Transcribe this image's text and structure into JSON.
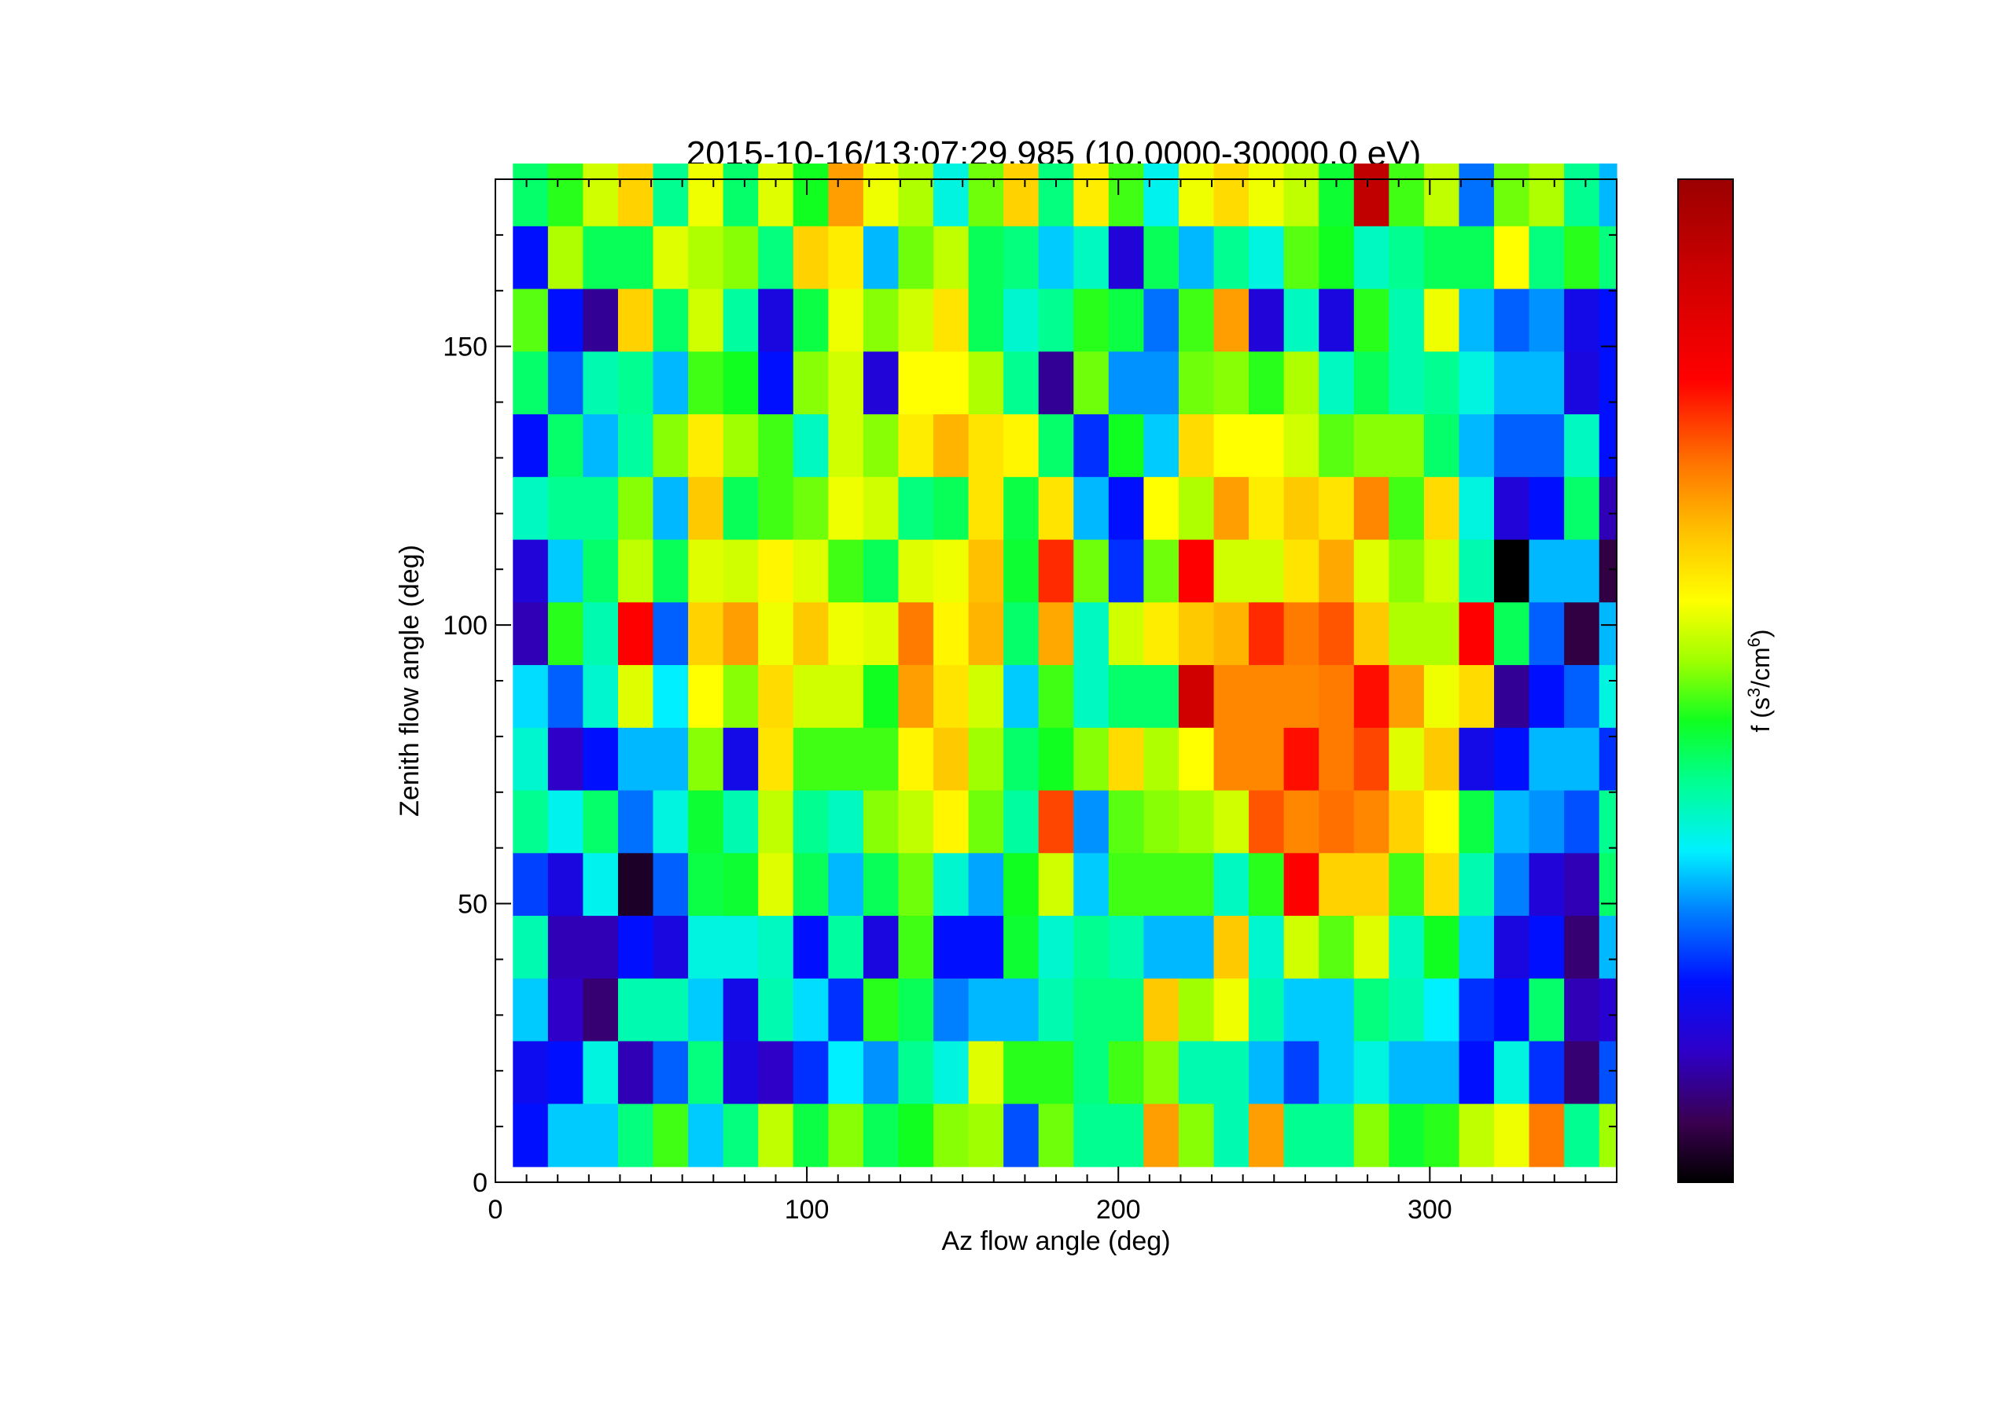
{
  "chart_data": {
    "type": "heatmap",
    "title": "2015-10-16/13:07:29.985 (10.0000-30000.0 eV)",
    "xlabel": "Az flow angle (deg)",
    "ylabel": "Zenith flow angle (deg)",
    "colorbar_label_base": "f (s",
    "colorbar_label_exp1": "3",
    "colorbar_label_mid": "/cm",
    "colorbar_label_exp2": "6",
    "colorbar_label_end": ")",
    "xlim": [
      0,
      360
    ],
    "ylim": [
      0,
      180
    ],
    "xticks": [
      0,
      100,
      200,
      300
    ],
    "yticks": [
      0,
      50,
      100,
      150
    ],
    "x_bin_start": 5.625,
    "x_bin_width": 11.25,
    "y_bin_start": 2.8125,
    "y_bin_width": 11.25,
    "colormap": "rainbow (black-purple-blue-cyan-green-yellow-orange-red-darkred)",
    "value_scale": "normalized 0-1",
    "rows_top_to_bottom": [
      [
        0.42,
        0.47,
        0.55,
        0.63,
        0.4,
        0.57,
        0.42,
        0.56,
        0.46,
        0.68,
        0.57,
        0.53,
        0.35,
        0.5,
        0.63,
        0.41,
        0.6,
        0.48,
        0.34,
        0.57,
        0.62,
        0.57,
        0.54,
        0.45,
        0.93,
        0.48,
        0.54,
        0.26,
        0.5,
        0.53,
        0.4,
        0.3
      ],
      [
        0.2,
        0.53,
        0.43,
        0.43,
        0.56,
        0.53,
        0.51,
        0.41,
        0.63,
        0.6,
        0.3,
        0.5,
        0.54,
        0.43,
        0.41,
        0.31,
        0.37,
        0.15,
        0.43,
        0.3,
        0.4,
        0.35,
        0.49,
        0.46,
        0.37,
        0.4,
        0.43,
        0.43,
        0.58,
        0.41,
        0.47,
        0.41
      ],
      [
        0.49,
        0.2,
        0.1,
        0.63,
        0.42,
        0.55,
        0.39,
        0.16,
        0.44,
        0.57,
        0.51,
        0.55,
        0.61,
        0.43,
        0.36,
        0.4,
        0.47,
        0.44,
        0.26,
        0.48,
        0.68,
        0.15,
        0.37,
        0.16,
        0.47,
        0.38,
        0.57,
        0.3,
        0.25,
        0.28,
        0.17,
        0.2
      ],
      [
        0.42,
        0.25,
        0.38,
        0.4,
        0.3,
        0.48,
        0.46,
        0.2,
        0.51,
        0.55,
        0.15,
        0.58,
        0.58,
        0.53,
        0.4,
        0.1,
        0.5,
        0.28,
        0.28,
        0.5,
        0.51,
        0.47,
        0.53,
        0.37,
        0.43,
        0.38,
        0.4,
        0.35,
        0.3,
        0.3,
        0.16,
        0.2
      ],
      [
        0.2,
        0.42,
        0.3,
        0.39,
        0.51,
        0.6,
        0.52,
        0.48,
        0.37,
        0.55,
        0.51,
        0.6,
        0.66,
        0.61,
        0.59,
        0.42,
        0.22,
        0.46,
        0.31,
        0.62,
        0.58,
        0.58,
        0.55,
        0.49,
        0.51,
        0.51,
        0.42,
        0.3,
        0.25,
        0.25,
        0.37,
        0.2
      ],
      [
        0.37,
        0.4,
        0.4,
        0.51,
        0.3,
        0.64,
        0.43,
        0.48,
        0.5,
        0.57,
        0.55,
        0.41,
        0.43,
        0.61,
        0.44,
        0.61,
        0.3,
        0.2,
        0.58,
        0.53,
        0.68,
        0.6,
        0.64,
        0.61,
        0.7,
        0.48,
        0.62,
        0.35,
        0.15,
        0.2,
        0.42,
        0.12
      ],
      [
        0.15,
        0.31,
        0.42,
        0.54,
        0.43,
        0.56,
        0.55,
        0.59,
        0.56,
        0.48,
        0.43,
        0.56,
        0.57,
        0.65,
        0.45,
        0.77,
        0.5,
        0.22,
        0.5,
        0.8,
        0.55,
        0.55,
        0.61,
        0.67,
        0.56,
        0.51,
        0.55,
        0.38,
        0.0,
        0.3,
        0.3,
        0.05
      ],
      [
        0.12,
        0.47,
        0.38,
        0.8,
        0.25,
        0.63,
        0.68,
        0.57,
        0.64,
        0.57,
        0.56,
        0.71,
        0.59,
        0.66,
        0.42,
        0.67,
        0.37,
        0.55,
        0.6,
        0.64,
        0.66,
        0.77,
        0.71,
        0.74,
        0.64,
        0.53,
        0.53,
        0.8,
        0.43,
        0.25,
        0.05,
        0.3
      ],
      [
        0.32,
        0.25,
        0.36,
        0.56,
        0.33,
        0.58,
        0.51,
        0.62,
        0.55,
        0.55,
        0.46,
        0.68,
        0.61,
        0.55,
        0.31,
        0.48,
        0.37,
        0.42,
        0.42,
        0.9,
        0.7,
        0.7,
        0.7,
        0.71,
        0.79,
        0.68,
        0.57,
        0.62,
        0.1,
        0.2,
        0.25,
        0.35
      ],
      [
        0.36,
        0.13,
        0.2,
        0.3,
        0.3,
        0.51,
        0.17,
        0.61,
        0.48,
        0.48,
        0.48,
        0.59,
        0.64,
        0.52,
        0.42,
        0.46,
        0.51,
        0.62,
        0.53,
        0.58,
        0.7,
        0.7,
        0.79,
        0.71,
        0.75,
        0.56,
        0.64,
        0.17,
        0.2,
        0.3,
        0.3,
        0.22
      ],
      [
        0.4,
        0.34,
        0.42,
        0.26,
        0.35,
        0.45,
        0.38,
        0.54,
        0.4,
        0.37,
        0.51,
        0.54,
        0.59,
        0.5,
        0.39,
        0.75,
        0.28,
        0.49,
        0.51,
        0.52,
        0.55,
        0.74,
        0.7,
        0.72,
        0.7,
        0.63,
        0.58,
        0.44,
        0.3,
        0.28,
        0.24,
        0.4
      ],
      [
        0.23,
        0.16,
        0.34,
        0.03,
        0.25,
        0.44,
        0.45,
        0.56,
        0.43,
        0.3,
        0.43,
        0.5,
        0.36,
        0.29,
        0.46,
        0.55,
        0.31,
        0.48,
        0.48,
        0.48,
        0.37,
        0.47,
        0.8,
        0.63,
        0.63,
        0.48,
        0.62,
        0.38,
        0.27,
        0.15,
        0.12,
        0.42
      ],
      [
        0.38,
        0.12,
        0.12,
        0.2,
        0.16,
        0.35,
        0.35,
        0.37,
        0.2,
        0.39,
        0.16,
        0.48,
        0.2,
        0.2,
        0.45,
        0.36,
        0.4,
        0.38,
        0.3,
        0.3,
        0.64,
        0.36,
        0.55,
        0.49,
        0.56,
        0.37,
        0.46,
        0.31,
        0.16,
        0.2,
        0.08,
        0.3
      ],
      [
        0.31,
        0.13,
        0.08,
        0.38,
        0.38,
        0.31,
        0.17,
        0.38,
        0.32,
        0.22,
        0.47,
        0.43,
        0.27,
        0.3,
        0.3,
        0.38,
        0.41,
        0.41,
        0.64,
        0.52,
        0.57,
        0.38,
        0.31,
        0.31,
        0.41,
        0.38,
        0.33,
        0.22,
        0.2,
        0.42,
        0.12,
        0.14
      ],
      [
        0.18,
        0.2,
        0.35,
        0.12,
        0.25,
        0.41,
        0.16,
        0.13,
        0.22,
        0.33,
        0.28,
        0.4,
        0.35,
        0.56,
        0.47,
        0.47,
        0.41,
        0.48,
        0.51,
        0.38,
        0.38,
        0.3,
        0.23,
        0.31,
        0.35,
        0.3,
        0.3,
        0.2,
        0.35,
        0.22,
        0.08,
        0.24
      ],
      [
        0.2,
        0.31,
        0.31,
        0.41,
        0.48,
        0.31,
        0.41,
        0.54,
        0.44,
        0.51,
        0.43,
        0.46,
        0.51,
        0.52,
        0.24,
        0.5,
        0.4,
        0.4,
        0.68,
        0.51,
        0.38,
        0.68,
        0.4,
        0.4,
        0.51,
        0.45,
        0.47,
        0.54,
        0.57,
        0.71,
        0.4,
        0.52
      ]
    ]
  }
}
